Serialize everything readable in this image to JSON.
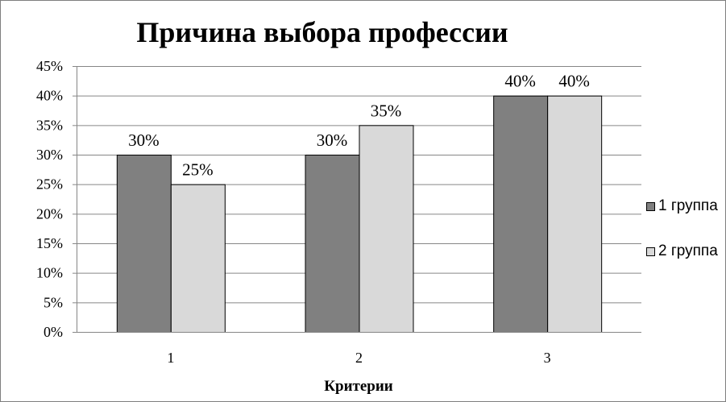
{
  "chart_data": {
    "type": "bar",
    "title": "Причина выбора профессии",
    "xlabel": "Критерии",
    "ylabel": "",
    "categories": [
      "1",
      "2",
      "3"
    ],
    "series": [
      {
        "name": "1 группа",
        "color": "#808080",
        "values": [
          30,
          30,
          40
        ],
        "labels": [
          "30%",
          "30%",
          "40%"
        ]
      },
      {
        "name": "2 группа",
        "color": "#d9d9d9",
        "values": [
          25,
          35,
          40
        ],
        "labels": [
          "25%",
          "35%",
          "40%"
        ]
      }
    ],
    "y_ticks": [
      0,
      5,
      10,
      15,
      20,
      25,
      30,
      35,
      40,
      45
    ],
    "y_tick_labels": [
      "0%",
      "5%",
      "10%",
      "15%",
      "20%",
      "25%",
      "30%",
      "35%",
      "40%",
      "45%"
    ],
    "ylim": [
      0,
      45
    ],
    "y_unit": "%",
    "grid": true,
    "legend_position": "right"
  }
}
